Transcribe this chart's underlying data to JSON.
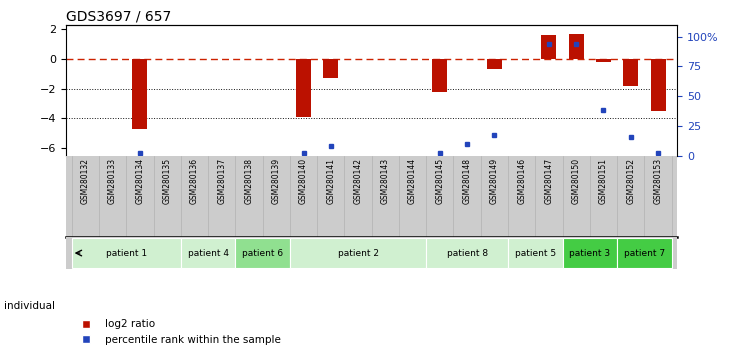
{
  "title": "GDS3697 / 657",
  "samples": [
    "GSM280132",
    "GSM280133",
    "GSM280134",
    "GSM280135",
    "GSM280136",
    "GSM280137",
    "GSM280138",
    "GSM280139",
    "GSM280140",
    "GSM280141",
    "GSM280142",
    "GSM280143",
    "GSM280144",
    "GSM280145",
    "GSM280148",
    "GSM280149",
    "GSM280146",
    "GSM280147",
    "GSM280150",
    "GSM280151",
    "GSM280152",
    "GSM280153"
  ],
  "log2_ratio": [
    0.0,
    0.0,
    -4.7,
    0.0,
    0.0,
    0.0,
    0.0,
    0.0,
    -3.9,
    -1.3,
    0.0,
    0.0,
    0.0,
    -2.2,
    0.0,
    -0.7,
    0.0,
    1.6,
    1.7,
    -0.2,
    -1.8,
    -3.5
  ],
  "percentile_rank": [
    null,
    null,
    2,
    null,
    null,
    null,
    null,
    null,
    2,
    8,
    null,
    null,
    null,
    2,
    10,
    17,
    null,
    94,
    94,
    38,
    16,
    2
  ],
  "patients": [
    {
      "label": "patient 1",
      "start": 0,
      "end": 4,
      "color": "#d0f0d0"
    },
    {
      "label": "patient 4",
      "start": 4,
      "end": 6,
      "color": "#d0f0d0"
    },
    {
      "label": "patient 6",
      "start": 6,
      "end": 8,
      "color": "#90e090"
    },
    {
      "label": "patient 2",
      "start": 8,
      "end": 13,
      "color": "#d0f0d0"
    },
    {
      "label": "patient 8",
      "start": 13,
      "end": 16,
      "color": "#d0f0d0"
    },
    {
      "label": "patient 5",
      "start": 16,
      "end": 18,
      "color": "#d0f0d0"
    },
    {
      "label": "patient 3",
      "start": 18,
      "end": 20,
      "color": "#44cc44"
    },
    {
      "label": "patient 7",
      "start": 20,
      "end": 22,
      "color": "#44cc44"
    }
  ],
  "ylim_left": [
    -6.5,
    2.3
  ],
  "ylim_right": [
    0,
    110
  ],
  "yticks_left": [
    -6,
    -4,
    -2,
    0,
    2
  ],
  "yticks_right": [
    0,
    25,
    50,
    75,
    100
  ],
  "bar_color": "#bb1100",
  "dot_color": "#2244bb",
  "ref_line_color": "#cc2200",
  "legend_log2": "log2 ratio",
  "legend_pct": "percentile rank within the sample"
}
